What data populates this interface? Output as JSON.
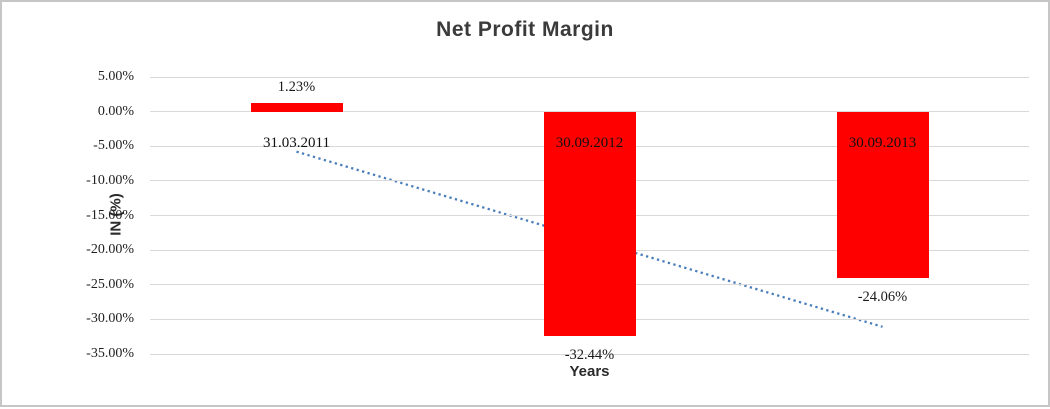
{
  "chart_data": {
    "type": "bar",
    "title": "Net Profit Margin",
    "xlabel": "Years",
    "ylabel": "IN (%)",
    "categories": [
      "31.03.2011",
      "30.09.2012",
      "30.09.2013"
    ],
    "values": [
      1.23,
      -32.44,
      -24.06
    ],
    "data_labels": [
      "1.23%",
      "-32.44%",
      "-24.06%"
    ],
    "tick_labels": [
      "5.00%",
      "0.00%",
      "-5.00%",
      "-10.00%",
      "-15.00%",
      "-20.00%",
      "-25.00%",
      "-30.00%",
      "-35.00%"
    ],
    "ylim": [
      -35,
      5
    ],
    "ytick_step": 5,
    "grid": true,
    "legend": "none",
    "bar_color": "#ff0000",
    "gridline_color": "#d9d9d9",
    "label_color": "#1a1a1a",
    "trendline": {
      "type": "linear",
      "style": "dotted",
      "color": "#4a7ebb",
      "start_value": -5.78,
      "end_value": -31.07
    }
  }
}
